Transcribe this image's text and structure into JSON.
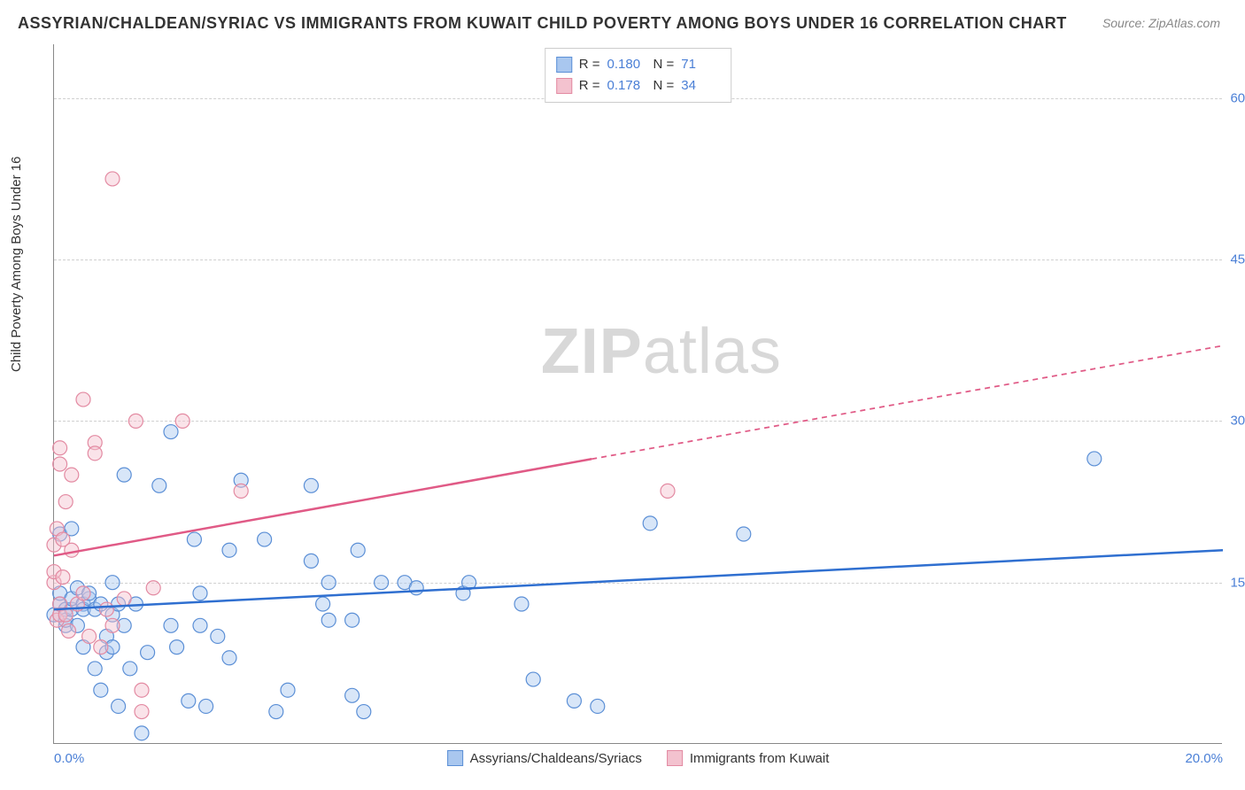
{
  "title": "ASSYRIAN/CHALDEAN/SYRIAC VS IMMIGRANTS FROM KUWAIT CHILD POVERTY AMONG BOYS UNDER 16 CORRELATION CHART",
  "source_label": "Source: ZipAtlas.com",
  "ylabel": "Child Poverty Among Boys Under 16",
  "watermark": {
    "zip": "ZIP",
    "atlas": "atlas"
  },
  "chart": {
    "type": "scatter",
    "background_color": "#ffffff",
    "grid_color": "#d0d0d0",
    "axis_color": "#888888",
    "xlim": [
      0,
      20
    ],
    "ylim": [
      0,
      65
    ],
    "xticks": [
      0,
      20
    ],
    "xtick_labels": [
      "0.0%",
      "20.0%"
    ],
    "yticks": [
      15,
      30,
      45,
      60
    ],
    "ytick_labels": [
      "15.0%",
      "30.0%",
      "45.0%",
      "60.0%"
    ],
    "label_color": "#4a7fd6",
    "label_fontsize": 15,
    "title_fontsize": 18,
    "title_color": "#333333",
    "marker_radius": 8,
    "marker_stroke_width": 1.2,
    "marker_opacity": 0.45,
    "trendline_width": 2.5,
    "trendline_dash_extrapolate": "6 5"
  },
  "series": [
    {
      "name": "Assyrians/Chaldeans/Syriacs",
      "fill": "#a9c7ef",
      "stroke": "#5b8fd6",
      "line_color": "#2f6fd0",
      "R": "0.180",
      "N": "71",
      "trendline": {
        "x1": 0,
        "y1": 12.5,
        "x2": 20,
        "y2": 18.0,
        "solid_until_x": 20
      },
      "points": [
        [
          0.0,
          12.0
        ],
        [
          0.1,
          13.0
        ],
        [
          0.1,
          14.0
        ],
        [
          0.1,
          19.5
        ],
        [
          0.2,
          12.5
        ],
        [
          0.2,
          11.0
        ],
        [
          0.2,
          11.5
        ],
        [
          0.3,
          12.5
        ],
        [
          0.3,
          13.5
        ],
        [
          0.3,
          20.0
        ],
        [
          0.4,
          14.5
        ],
        [
          0.4,
          11.0
        ],
        [
          0.5,
          13.0
        ],
        [
          0.5,
          12.5
        ],
        [
          0.5,
          9.0
        ],
        [
          0.6,
          13.5
        ],
        [
          0.6,
          14.0
        ],
        [
          0.7,
          12.5
        ],
        [
          0.7,
          7.0
        ],
        [
          0.8,
          5.0
        ],
        [
          0.8,
          13.0
        ],
        [
          0.9,
          10.0
        ],
        [
          0.9,
          8.5
        ],
        [
          1.0,
          15.0
        ],
        [
          1.0,
          12.0
        ],
        [
          1.0,
          9.0
        ],
        [
          1.1,
          13.0
        ],
        [
          1.1,
          3.5
        ],
        [
          1.2,
          11.0
        ],
        [
          1.2,
          25.0
        ],
        [
          1.3,
          7.0
        ],
        [
          1.4,
          13.0
        ],
        [
          1.5,
          1.0
        ],
        [
          1.6,
          8.5
        ],
        [
          1.8,
          24.0
        ],
        [
          2.0,
          29.0
        ],
        [
          2.0,
          11.0
        ],
        [
          2.1,
          9.0
        ],
        [
          2.3,
          4.0
        ],
        [
          2.4,
          19.0
        ],
        [
          2.5,
          11.0
        ],
        [
          2.5,
          14.0
        ],
        [
          2.6,
          3.5
        ],
        [
          2.8,
          10.0
        ],
        [
          3.0,
          18.0
        ],
        [
          3.0,
          8.0
        ],
        [
          3.2,
          24.5
        ],
        [
          3.6,
          19.0
        ],
        [
          3.8,
          3.0
        ],
        [
          4.0,
          5.0
        ],
        [
          4.4,
          17.0
        ],
        [
          4.4,
          24.0
        ],
        [
          4.6,
          13.0
        ],
        [
          4.7,
          11.5
        ],
        [
          4.7,
          15.0
        ],
        [
          5.1,
          11.5
        ],
        [
          5.1,
          4.5
        ],
        [
          5.2,
          18.0
        ],
        [
          5.3,
          3.0
        ],
        [
          5.6,
          15.0
        ],
        [
          6.0,
          15.0
        ],
        [
          6.2,
          14.5
        ],
        [
          7.0,
          14.0
        ],
        [
          7.1,
          15.0
        ],
        [
          8.0,
          13.0
        ],
        [
          8.2,
          6.0
        ],
        [
          8.9,
          4.0
        ],
        [
          9.3,
          3.5
        ],
        [
          10.2,
          20.5
        ],
        [
          11.8,
          19.5
        ],
        [
          17.8,
          26.5
        ]
      ]
    },
    {
      "name": "Immigrants from Kuwait",
      "fill": "#f3c2cf",
      "stroke": "#e38aa2",
      "line_color": "#e05a86",
      "R": "0.178",
      "N": "34",
      "trendline": {
        "x1": 0,
        "y1": 17.5,
        "x2": 20,
        "y2": 37.0,
        "solid_until_x": 9.2
      },
      "points": [
        [
          0.0,
          15.0
        ],
        [
          0.0,
          16.0
        ],
        [
          0.0,
          18.5
        ],
        [
          0.05,
          20.0
        ],
        [
          0.05,
          11.5
        ],
        [
          0.1,
          12.0
        ],
        [
          0.1,
          13.0
        ],
        [
          0.1,
          26.0
        ],
        [
          0.1,
          27.5
        ],
        [
          0.15,
          15.5
        ],
        [
          0.15,
          19.0
        ],
        [
          0.2,
          12.0
        ],
        [
          0.2,
          22.5
        ],
        [
          0.25,
          10.5
        ],
        [
          0.3,
          18.0
        ],
        [
          0.3,
          25.0
        ],
        [
          0.4,
          13.0
        ],
        [
          0.5,
          14.0
        ],
        [
          0.5,
          32.0
        ],
        [
          0.6,
          10.0
        ],
        [
          0.7,
          28.0
        ],
        [
          0.7,
          27.0
        ],
        [
          0.8,
          9.0
        ],
        [
          0.9,
          12.5
        ],
        [
          1.0,
          52.5
        ],
        [
          1.0,
          11.0
        ],
        [
          1.2,
          13.5
        ],
        [
          1.4,
          30.0
        ],
        [
          1.5,
          5.0
        ],
        [
          1.5,
          3.0
        ],
        [
          1.7,
          14.5
        ],
        [
          2.2,
          30.0
        ],
        [
          3.2,
          23.5
        ],
        [
          10.5,
          23.5
        ]
      ]
    }
  ],
  "legend_top": {
    "labels": {
      "R": "R =",
      "N": "N ="
    }
  },
  "legend_bottom": {
    "enabled": true
  }
}
